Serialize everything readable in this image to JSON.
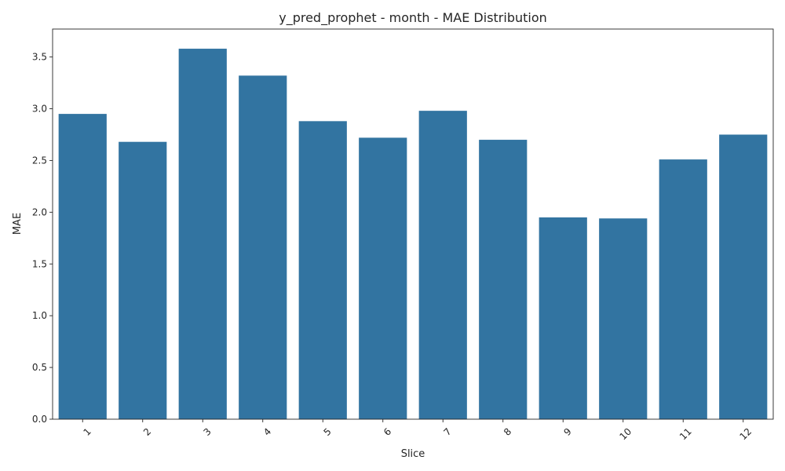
{
  "chart_data": {
    "type": "bar",
    "title": "y_pred_prophet - month - MAE Distribution",
    "xlabel": "Slice",
    "ylabel": "MAE",
    "categories": [
      "1",
      "2",
      "3",
      "4",
      "5",
      "6",
      "7",
      "8",
      "9",
      "10",
      "11",
      "12"
    ],
    "values": [
      2.95,
      2.68,
      3.58,
      3.32,
      2.88,
      2.72,
      2.98,
      2.7,
      1.95,
      1.94,
      2.51,
      2.75
    ],
    "ylim": [
      0,
      3.77
    ],
    "yticks": [
      0.0,
      0.5,
      1.0,
      1.5,
      2.0,
      2.5,
      3.0,
      3.5
    ],
    "ytick_labels": [
      "0.0",
      "0.5",
      "1.0",
      "1.5",
      "2.0",
      "2.5",
      "3.0",
      "3.5"
    ],
    "bar_color": "#3274a1",
    "grid": false,
    "legend": "none"
  }
}
